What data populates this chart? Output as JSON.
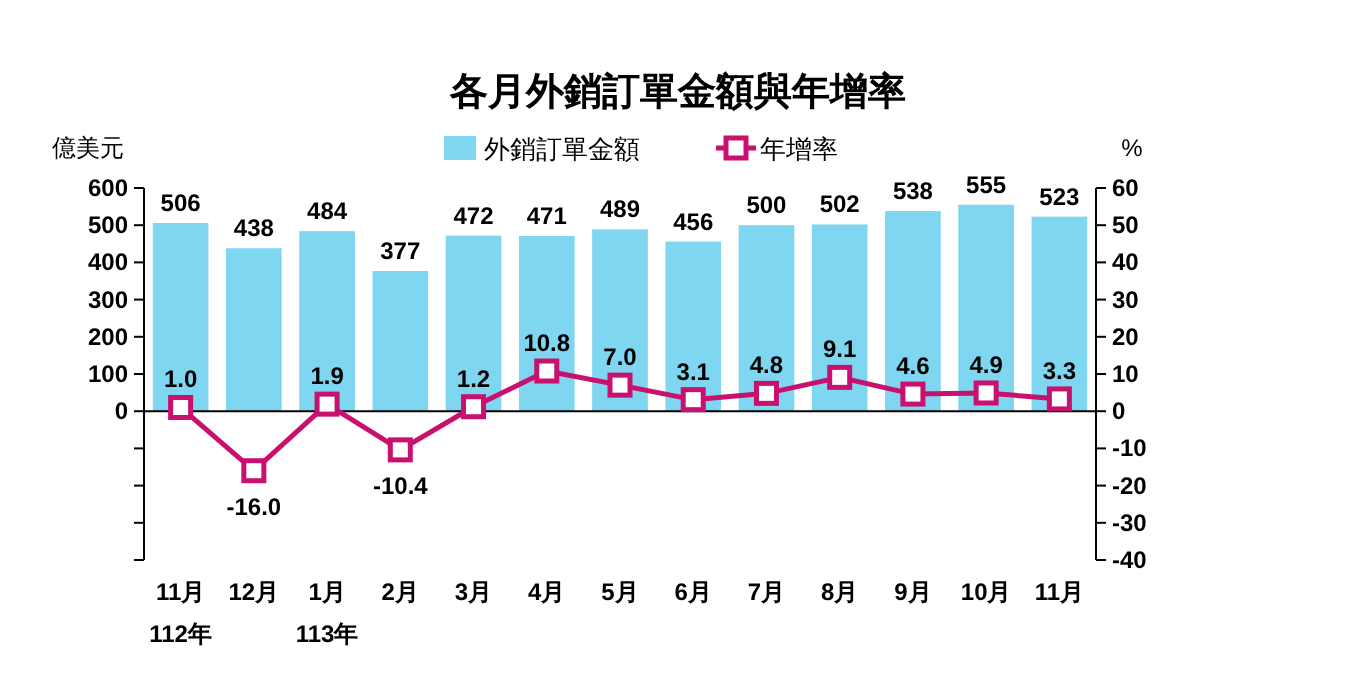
{
  "chart_data": {
    "type": "bar",
    "title": "各月外銷訂單金額與年增率",
    "ylabel": "億美元",
    "y2label": "%",
    "categories": [
      "11月\n112年",
      "12月",
      "1月\n113年",
      "2月",
      "3月",
      "4月",
      "5月",
      "6月",
      "7月",
      "8月",
      "9月",
      "10月",
      "11月"
    ],
    "series": [
      {
        "name": "外銷訂單金額",
        "color": "#7fd6f0",
        "values": [
          506,
          438,
          484,
          377,
          472,
          471,
          489,
          456,
          500,
          502,
          538,
          555,
          523
        ]
      },
      {
        "name": "年增率",
        "type": "line",
        "axis": "y2",
        "color": "#c8106e",
        "marker": "square",
        "line_style": "solid",
        "values": [
          1.0,
          -16.0,
          1.9,
          -10.4,
          1.2,
          10.8,
          7.0,
          3.1,
          4.8,
          9.1,
          4.6,
          4.9,
          3.3
        ],
        "value_labels": [
          "1.0",
          "-16.0",
          "1.9",
          "-10.4",
          "1.2",
          "10.8",
          "7.0",
          "3.1",
          "4.8",
          "9.1",
          "4.6",
          "4.9",
          "3.3"
        ]
      }
    ],
    "ylim": [
      -400,
      600
    ],
    "yticks": [
      {
        "value": -400,
        "label": null
      },
      {
        "value": -300,
        "label": null
      },
      {
        "value": -200,
        "label": null
      },
      {
        "value": -100,
        "label": null
      },
      0,
      100,
      200,
      300,
      400,
      500,
      600
    ],
    "y2lim": [
      -40,
      60
    ],
    "y2ticks": [
      -40,
      -30,
      -20,
      -10,
      0,
      10,
      20,
      30,
      40,
      50,
      60
    ],
    "data_labels": true,
    "legend": "top"
  }
}
